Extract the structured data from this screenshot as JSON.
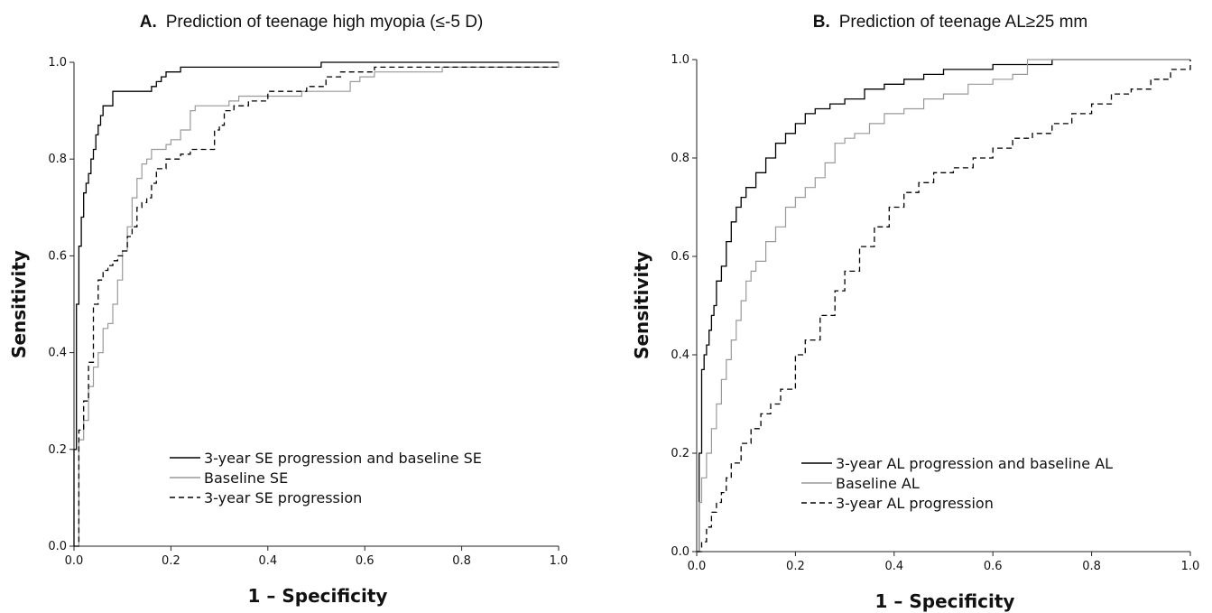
{
  "chart_data": [
    {
      "type": "line",
      "panel_letter": "A.",
      "title": "Prediction of teenage high myopia (≤-5 D)",
      "xlabel": "1 – Specificity",
      "ylabel": "Sensitivity",
      "xlim": [
        0,
        1
      ],
      "ylim": [
        0,
        1
      ],
      "ticks": [
        "0.0",
        "0.2",
        "0.4",
        "0.6",
        "0.8",
        "1.0"
      ],
      "legend_position": "bottom-right",
      "grid": false,
      "series": [
        {
          "name": "3-year SE progression and baseline SE",
          "color": "#000000",
          "style": "solid",
          "x": [
            0,
            0,
            0.005,
            0.005,
            0.01,
            0.01,
            0.015,
            0.015,
            0.02,
            0.02,
            0.025,
            0.03,
            0.035,
            0.04,
            0.045,
            0.05,
            0.055,
            0.06,
            0.07,
            0.08,
            0.08,
            0.15,
            0.16,
            0.17,
            0.18,
            0.19,
            0.2,
            0.22,
            0.22,
            0.51,
            0.51,
            1.0
          ],
          "y": [
            0,
            0.2,
            0.38,
            0.5,
            0.58,
            0.62,
            0.66,
            0.68,
            0.7,
            0.73,
            0.75,
            0.77,
            0.8,
            0.82,
            0.85,
            0.87,
            0.89,
            0.91,
            0.91,
            0.93,
            0.94,
            0.94,
            0.95,
            0.96,
            0.97,
            0.98,
            0.98,
            0.98,
            0.99,
            0.99,
            1.0,
            1.0
          ]
        },
        {
          "name": "Baseline SE",
          "color": "#999999",
          "style": "solid",
          "x": [
            0,
            0.01,
            0.02,
            0.03,
            0.04,
            0.05,
            0.06,
            0.07,
            0.08,
            0.09,
            0.1,
            0.11,
            0.12,
            0.13,
            0.14,
            0.15,
            0.16,
            0.17,
            0.19,
            0.2,
            0.22,
            0.24,
            0.25,
            0.27,
            0.29,
            0.31,
            0.32,
            0.34,
            0.45,
            0.47,
            0.53,
            0.57,
            0.59,
            0.62,
            0.76,
            1.0
          ],
          "y": [
            0,
            0.22,
            0.26,
            0.33,
            0.37,
            0.4,
            0.45,
            0.46,
            0.5,
            0.55,
            0.61,
            0.66,
            0.72,
            0.76,
            0.79,
            0.8,
            0.82,
            0.82,
            0.83,
            0.84,
            0.86,
            0.9,
            0.91,
            0.91,
            0.91,
            0.91,
            0.92,
            0.93,
            0.93,
            0.94,
            0.94,
            0.96,
            0.97,
            0.98,
            0.99,
            1.0
          ]
        },
        {
          "name": "3-year SE progression",
          "color": "#000000",
          "style": "dashed",
          "x": [
            0,
            0.01,
            0.02,
            0.03,
            0.04,
            0.05,
            0.06,
            0.07,
            0.08,
            0.09,
            0.1,
            0.11,
            0.12,
            0.13,
            0.14,
            0.15,
            0.16,
            0.17,
            0.19,
            0.2,
            0.22,
            0.24,
            0.26,
            0.29,
            0.3,
            0.31,
            0.33,
            0.36,
            0.4,
            0.43,
            0.48,
            0.52,
            0.55,
            0.62,
            1.0
          ],
          "y": [
            0,
            0.24,
            0.3,
            0.38,
            0.5,
            0.55,
            0.57,
            0.58,
            0.59,
            0.6,
            0.61,
            0.64,
            0.66,
            0.7,
            0.71,
            0.72,
            0.75,
            0.78,
            0.8,
            0.8,
            0.81,
            0.82,
            0.82,
            0.86,
            0.87,
            0.9,
            0.91,
            0.92,
            0.94,
            0.94,
            0.95,
            0.97,
            0.98,
            0.99,
            0.99
          ]
        }
      ]
    },
    {
      "type": "line",
      "panel_letter": "B.",
      "title": "Prediction of teenage AL≥25 mm",
      "xlabel": "1 – Specificity",
      "ylabel": "Sensitivity",
      "xlim": [
        0,
        1
      ],
      "ylim": [
        0,
        1
      ],
      "ticks": [
        "0.0",
        "0.2",
        "0.4",
        "0.6",
        "0.8",
        "1.0"
      ],
      "legend_position": "bottom-right",
      "grid": false,
      "series": [
        {
          "name": "3-year AL progression and baseline AL",
          "color": "#000000",
          "style": "solid",
          "x": [
            0,
            0.005,
            0.01,
            0.015,
            0.02,
            0.025,
            0.03,
            0.035,
            0.04,
            0.05,
            0.06,
            0.07,
            0.08,
            0.09,
            0.1,
            0.12,
            0.14,
            0.16,
            0.18,
            0.2,
            0.22,
            0.24,
            0.27,
            0.3,
            0.34,
            0.38,
            0.42,
            0.46,
            0.5,
            0.55,
            0.6,
            0.66,
            0.72,
            0.8,
            0.9,
            1.0
          ],
          "y": [
            0,
            0.2,
            0.37,
            0.4,
            0.42,
            0.45,
            0.48,
            0.5,
            0.55,
            0.58,
            0.63,
            0.67,
            0.7,
            0.72,
            0.74,
            0.77,
            0.8,
            0.83,
            0.85,
            0.87,
            0.89,
            0.9,
            0.91,
            0.92,
            0.94,
            0.95,
            0.96,
            0.97,
            0.98,
            0.98,
            0.99,
            0.99,
            1.0,
            1.0,
            1.0,
            1.0
          ]
        },
        {
          "name": "Baseline AL",
          "color": "#999999",
          "style": "solid",
          "x": [
            0,
            0.005,
            0.01,
            0.02,
            0.03,
            0.04,
            0.05,
            0.06,
            0.07,
            0.08,
            0.09,
            0.1,
            0.11,
            0.12,
            0.14,
            0.16,
            0.18,
            0.2,
            0.22,
            0.24,
            0.26,
            0.28,
            0.3,
            0.32,
            0.35,
            0.38,
            0.42,
            0.46,
            0.5,
            0.55,
            0.6,
            0.64,
            0.67,
            0.8,
            1.0
          ],
          "y": [
            0,
            0.1,
            0.15,
            0.2,
            0.25,
            0.3,
            0.35,
            0.39,
            0.43,
            0.47,
            0.51,
            0.55,
            0.57,
            0.59,
            0.63,
            0.66,
            0.7,
            0.72,
            0.74,
            0.76,
            0.79,
            0.83,
            0.84,
            0.85,
            0.87,
            0.89,
            0.9,
            0.92,
            0.93,
            0.95,
            0.96,
            0.97,
            1.0,
            1.0,
            1.0
          ]
        },
        {
          "name": "3-year AL progression",
          "color": "#000000",
          "style": "dashed",
          "x": [
            0,
            0.01,
            0.02,
            0.03,
            0.04,
            0.05,
            0.06,
            0.07,
            0.09,
            0.11,
            0.13,
            0.15,
            0.17,
            0.2,
            0.22,
            0.25,
            0.28,
            0.3,
            0.33,
            0.36,
            0.39,
            0.42,
            0.45,
            0.48,
            0.52,
            0.56,
            0.6,
            0.64,
            0.68,
            0.72,
            0.76,
            0.8,
            0.84,
            0.88,
            0.92,
            0.96,
            1.0
          ],
          "y": [
            0,
            0.02,
            0.05,
            0.08,
            0.1,
            0.12,
            0.15,
            0.18,
            0.22,
            0.25,
            0.28,
            0.3,
            0.33,
            0.4,
            0.43,
            0.48,
            0.53,
            0.57,
            0.62,
            0.66,
            0.7,
            0.73,
            0.75,
            0.77,
            0.78,
            0.8,
            0.82,
            0.84,
            0.85,
            0.87,
            0.89,
            0.91,
            0.93,
            0.94,
            0.96,
            0.98,
            1.0
          ]
        }
      ]
    }
  ]
}
